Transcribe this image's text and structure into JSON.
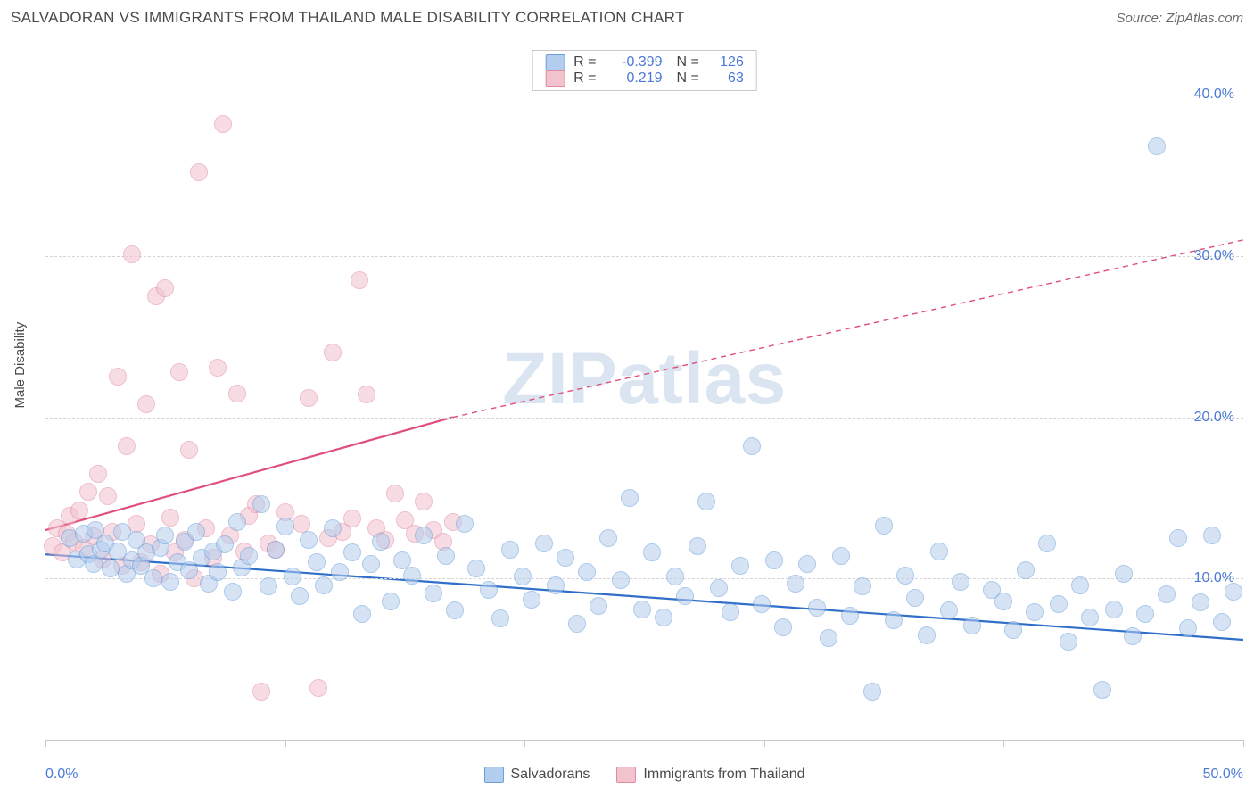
{
  "header": {
    "title": "SALVADORAN VS IMMIGRANTS FROM THAILAND MALE DISABILITY CORRELATION CHART",
    "source": "Source: ZipAtlas.com"
  },
  "chart": {
    "type": "scatter",
    "ylabel": "Male Disability",
    "xlim": [
      0,
      50
    ],
    "ylim": [
      0,
      43
    ],
    "xtick_positions": [
      0,
      10,
      20,
      30,
      40,
      50
    ],
    "xtick_labels": [
      "0.0%",
      "",
      "",
      "",
      "",
      "50.0%"
    ],
    "ytick_positions": [
      10,
      20,
      30,
      40
    ],
    "ytick_labels": [
      "10.0%",
      "20.0%",
      "30.0%",
      "40.0%"
    ],
    "grid_color": "#d5d5d5",
    "background_color": "#ffffff",
    "watermark": "ZIPatlas",
    "point_radius": 10,
    "point_stroke_width": 1.5,
    "series": [
      {
        "name": "Salvadorans",
        "fill": "#b3cdee",
        "stroke": "#6a9fd8",
        "fill_opacity": 0.55,
        "R": "-0.399",
        "N": "126",
        "trend": {
          "x1": 0,
          "y1": 11.5,
          "x2": 50,
          "y2": 6.2,
          "stroke": "#2f6fc9",
          "stroke_width": 2.2,
          "dash_after": 50
        },
        "points": [
          [
            1,
            12.5
          ],
          [
            1.3,
            11.2
          ],
          [
            1.6,
            12.8
          ],
          [
            1.8,
            11.5
          ],
          [
            2,
            10.9
          ],
          [
            2.1,
            13
          ],
          [
            2.3,
            11.8
          ],
          [
            2.5,
            12.2
          ],
          [
            2.7,
            10.6
          ],
          [
            3,
            11.7
          ],
          [
            3.2,
            12.9
          ],
          [
            3.4,
            10.3
          ],
          [
            3.6,
            11.1
          ],
          [
            3.8,
            12.4
          ],
          [
            4,
            10.8
          ],
          [
            4.2,
            11.6
          ],
          [
            4.5,
            10
          ],
          [
            4.8,
            11.9
          ],
          [
            5,
            12.7
          ],
          [
            5.2,
            9.8
          ],
          [
            5.5,
            11
          ],
          [
            5.8,
            12.3
          ],
          [
            6,
            10.5
          ],
          [
            6.3,
            12.9
          ],
          [
            6.5,
            11.3
          ],
          [
            6.8,
            9.7
          ],
          [
            7,
            11.7
          ],
          [
            7.2,
            10.4
          ],
          [
            7.5,
            12.1
          ],
          [
            7.8,
            9.2
          ],
          [
            8,
            13.5
          ],
          [
            8.2,
            10.7
          ],
          [
            8.5,
            11.4
          ],
          [
            9,
            14.6
          ],
          [
            9.3,
            9.5
          ],
          [
            9.6,
            11.8
          ],
          [
            10,
            13.2
          ],
          [
            10.3,
            10.1
          ],
          [
            10.6,
            8.9
          ],
          [
            11,
            12.4
          ],
          [
            11.3,
            11
          ],
          [
            11.6,
            9.6
          ],
          [
            12,
            13.1
          ],
          [
            12.3,
            10.4
          ],
          [
            12.8,
            11.6
          ],
          [
            13.2,
            7.8
          ],
          [
            13.6,
            10.9
          ],
          [
            14,
            12.3
          ],
          [
            14.4,
            8.6
          ],
          [
            14.9,
            11.1
          ],
          [
            15.3,
            10.2
          ],
          [
            15.8,
            12.7
          ],
          [
            16.2,
            9.1
          ],
          [
            16.7,
            11.4
          ],
          [
            17.1,
            8
          ],
          [
            17.5,
            13.4
          ],
          [
            18,
            10.6
          ],
          [
            18.5,
            9.3
          ],
          [
            19,
            7.5
          ],
          [
            19.4,
            11.8
          ],
          [
            19.9,
            10.1
          ],
          [
            20.3,
            8.7
          ],
          [
            20.8,
            12.2
          ],
          [
            21.3,
            9.6
          ],
          [
            21.7,
            11.3
          ],
          [
            22.2,
            7.2
          ],
          [
            22.6,
            10.4
          ],
          [
            23.1,
            8.3
          ],
          [
            23.5,
            12.5
          ],
          [
            24,
            9.9
          ],
          [
            24.4,
            15
          ],
          [
            24.9,
            8.1
          ],
          [
            25.3,
            11.6
          ],
          [
            25.8,
            7.6
          ],
          [
            26.3,
            10.1
          ],
          [
            26.7,
            8.9
          ],
          [
            27.2,
            12
          ],
          [
            27.6,
            14.8
          ],
          [
            28.1,
            9.4
          ],
          [
            28.6,
            7.9
          ],
          [
            29,
            10.8
          ],
          [
            29.5,
            18.2
          ],
          [
            29.9,
            8.4
          ],
          [
            30.4,
            11.1
          ],
          [
            30.8,
            7
          ],
          [
            31.3,
            9.7
          ],
          [
            31.8,
            10.9
          ],
          [
            32.2,
            8.2
          ],
          [
            32.7,
            6.3
          ],
          [
            33.2,
            11.4
          ],
          [
            33.6,
            7.7
          ],
          [
            34.1,
            9.5
          ],
          [
            34.5,
            3
          ],
          [
            35,
            13.3
          ],
          [
            35.4,
            7.4
          ],
          [
            35.9,
            10.2
          ],
          [
            36.3,
            8.8
          ],
          [
            36.8,
            6.5
          ],
          [
            37.3,
            11.7
          ],
          [
            37.7,
            8
          ],
          [
            38.2,
            9.8
          ],
          [
            38.7,
            7.1
          ],
          [
            39.5,
            9.3
          ],
          [
            40,
            8.6
          ],
          [
            40.4,
            6.8
          ],
          [
            40.9,
            10.5
          ],
          [
            41.3,
            7.9
          ],
          [
            41.8,
            12.2
          ],
          [
            42.3,
            8.4
          ],
          [
            42.7,
            6.1
          ],
          [
            43.2,
            9.6
          ],
          [
            43.6,
            7.6
          ],
          [
            44.1,
            3.1
          ],
          [
            44.6,
            8.1
          ],
          [
            45,
            10.3
          ],
          [
            45.4,
            6.4
          ],
          [
            45.9,
            7.8
          ],
          [
            46.4,
            36.8
          ],
          [
            46.8,
            9
          ],
          [
            47.3,
            12.5
          ],
          [
            47.7,
            6.9
          ],
          [
            48.2,
            8.5
          ],
          [
            48.7,
            12.7
          ],
          [
            49.1,
            7.3
          ],
          [
            49.6,
            9.2
          ]
        ]
      },
      {
        "name": "Immigrants from Thailand",
        "fill": "#f2c2cd",
        "stroke": "#e08aa3",
        "fill_opacity": 0.55,
        "R": "0.219",
        "N": "63",
        "trend": {
          "x1": 0,
          "y1": 13,
          "x2": 17,
          "y2": 20,
          "stroke": "#e04f7a",
          "stroke_width": 2.2,
          "dash_after": 17,
          "x3": 50,
          "y3": 31
        },
        "points": [
          [
            0.3,
            12
          ],
          [
            0.5,
            13.1
          ],
          [
            0.7,
            11.6
          ],
          [
            0.9,
            12.8
          ],
          [
            1,
            13.9
          ],
          [
            1.2,
            12.3
          ],
          [
            1.4,
            14.2
          ],
          [
            1.6,
            11.9
          ],
          [
            1.8,
            15.4
          ],
          [
            2,
            12.6
          ],
          [
            2.2,
            16.5
          ],
          [
            2.4,
            11.2
          ],
          [
            2.6,
            15.1
          ],
          [
            2.8,
            12.9
          ],
          [
            3,
            22.5
          ],
          [
            3.2,
            10.8
          ],
          [
            3.4,
            18.2
          ],
          [
            3.6,
            30.1
          ],
          [
            3.8,
            13.4
          ],
          [
            4,
            11
          ],
          [
            4.2,
            20.8
          ],
          [
            4.4,
            12.1
          ],
          [
            4.6,
            27.5
          ],
          [
            4.8,
            10.3
          ],
          [
            5,
            28
          ],
          [
            5.2,
            13.8
          ],
          [
            5.4,
            11.6
          ],
          [
            5.6,
            22.8
          ],
          [
            5.8,
            12.4
          ],
          [
            6,
            18
          ],
          [
            6.2,
            10
          ],
          [
            6.4,
            35.2
          ],
          [
            6.7,
            13.1
          ],
          [
            7,
            11.3
          ],
          [
            7.2,
            23.1
          ],
          [
            7.4,
            38.2
          ],
          [
            7.7,
            12.7
          ],
          [
            8,
            21.5
          ],
          [
            8.3,
            11.7
          ],
          [
            8.5,
            13.9
          ],
          [
            8.8,
            14.6
          ],
          [
            9,
            3
          ],
          [
            9.3,
            12.2
          ],
          [
            9.6,
            11.8
          ],
          [
            10,
            14.1
          ],
          [
            10.7,
            13.4
          ],
          [
            11,
            21.2
          ],
          [
            11.4,
            3.2
          ],
          [
            11.8,
            12.5
          ],
          [
            12,
            24
          ],
          [
            12.4,
            12.9
          ],
          [
            12.8,
            13.7
          ],
          [
            13.1,
            28.5
          ],
          [
            13.4,
            21.4
          ],
          [
            13.8,
            13.1
          ],
          [
            14.2,
            12.4
          ],
          [
            14.6,
            15.3
          ],
          [
            15,
            13.6
          ],
          [
            15.4,
            12.8
          ],
          [
            15.8,
            14.8
          ],
          [
            16.2,
            13
          ],
          [
            16.6,
            12.3
          ],
          [
            17,
            13.5
          ]
        ]
      }
    ],
    "legend_top": [
      {
        "swatch_fill": "#b3cdee",
        "swatch_stroke": "#6a9fd8",
        "r_label": "R =",
        "r_val": "-0.399",
        "n_label": "N =",
        "n_val": "126"
      },
      {
        "swatch_fill": "#f2c2cd",
        "swatch_stroke": "#e08aa3",
        "r_label": "R =",
        "r_val": "0.219",
        "n_label": "N =",
        "n_val": "63"
      }
    ],
    "legend_bottom": [
      {
        "swatch_fill": "#b3cdee",
        "swatch_stroke": "#6a9fd8",
        "label": "Salvadorans"
      },
      {
        "swatch_fill": "#f2c2cd",
        "swatch_stroke": "#e08aa3",
        "label": "Immigrants from Thailand"
      }
    ]
  }
}
